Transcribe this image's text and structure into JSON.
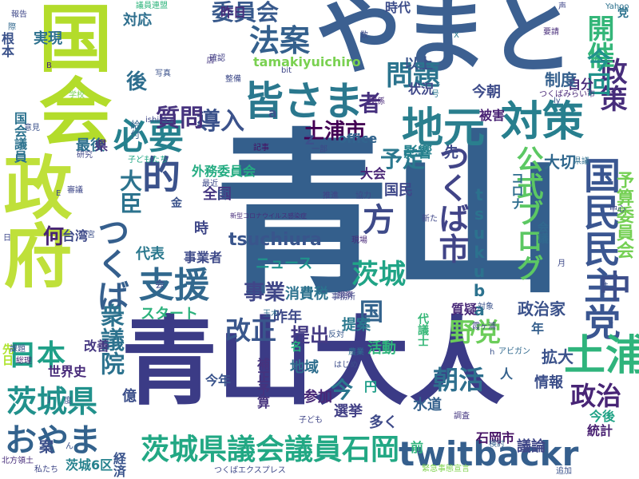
{
  "words": [
    {
      "text": "青山",
      "color": "#345f8c"
    },
    {
      "text": "青山大人",
      "color": "#3b3b86"
    },
    {
      "text": "やまと",
      "color": "#3c6091"
    },
    {
      "text": "国会",
      "color": "#b3dc2b"
    },
    {
      "text": "政府",
      "color": "#bfe03a"
    },
    {
      "text": "国民民主党",
      "color": "#3a5691"
    },
    {
      "text": "土浦",
      "color": "#2fb47c"
    },
    {
      "text": "地元",
      "color": "#2a7f8e"
    },
    {
      "text": "対策",
      "color": "#277f8e"
    },
    {
      "text": "政策",
      "color": "#472d7b"
    },
    {
      "text": "皆さま",
      "color": "#2a788e"
    },
    {
      "text": "法案",
      "color": "#34608d"
    },
    {
      "text": "問題",
      "color": "#2b748e"
    },
    {
      "text": "開催",
      "color": "#34b679"
    },
    {
      "text": "今回",
      "color": "#20928c"
    },
    {
      "text": "必要",
      "color": "#26818e"
    },
    {
      "text": "的",
      "color": "#3b528b"
    },
    {
      "text": "つくば",
      "color": "#355f8d"
    },
    {
      "text": "つくば市",
      "color": "#414487"
    },
    {
      "text": "支援",
      "color": "#31688e"
    },
    {
      "text": "方",
      "color": "#3e4a89"
    },
    {
      "text": "公式ブログ",
      "color": "#5cc863"
    },
    {
      "text": "茨城県議会議員石岡",
      "color": "#22a884"
    },
    {
      "text": "twitbackr",
      "color": "#355f8d"
    },
    {
      "text": "茨城県",
      "color": "#21918c"
    },
    {
      "text": "おやま",
      "color": "#33628d"
    },
    {
      "text": "日本",
      "color": "#1fa088"
    },
    {
      "text": "衆議院",
      "color": "#2c728e"
    },
    {
      "text": "改正",
      "color": "#39568c"
    },
    {
      "text": "茨城",
      "color": "#20a486"
    },
    {
      "text": "野党",
      "color": "#6ccd5a"
    },
    {
      "text": "朝活",
      "color": "#2e6f8e"
    },
    {
      "text": "政治",
      "color": "#482576"
    },
    {
      "text": "中",
      "color": "#3d4e8a"
    },
    {
      "text": "tsuchiura",
      "color": "#39558c"
    },
    {
      "text": "tsukuba",
      "color": "#2c728e"
    },
    {
      "text": "導入",
      "color": "#3b528b"
    },
    {
      "text": "質問",
      "color": "#46327e"
    },
    {
      "text": "委員会",
      "color": "#38598c"
    },
    {
      "text": "tamakiyuichiro",
      "color": "#7ad151"
    },
    {
      "text": "土浦市",
      "color": "#440154"
    },
    {
      "text": "予定",
      "color": "#2a788e"
    },
    {
      "text": "国",
      "color": "#33638d"
    },
    {
      "text": "事業",
      "color": "#404688"
    },
    {
      "text": "提出",
      "color": "#443a83"
    },
    {
      "text": "今",
      "color": "#2a778e"
    },
    {
      "text": "大臣",
      "color": "#2c738e"
    },
    {
      "text": "者",
      "color": "#46307e"
    },
    {
      "text": "後",
      "color": "#2e6e8e"
    },
    {
      "text": "昨日",
      "color": "#472c7a"
    },
    {
      "text": "時代",
      "color": "#3d4d8a"
    },
    {
      "text": "党",
      "color": "#2c728e"
    },
    {
      "text": "自分",
      "color": "#472c7a"
    },
    {
      "text": "国民",
      "color": "#3f4889"
    },
    {
      "text": "大会",
      "color": "#482475"
    },
    {
      "text": "大切",
      "color": "#31688e"
    },
    {
      "text": "影響",
      "color": "#26828e"
    },
    {
      "text": "被害",
      "color": "#482173"
    },
    {
      "text": "今朝",
      "color": "#3e4c8a"
    },
    {
      "text": "状況",
      "color": "#3f4889"
    },
    {
      "text": "制度",
      "color": "#35608d"
    },
    {
      "text": "以上",
      "color": "#3a548c"
    },
    {
      "text": "コロナ",
      "color": "#2e6e8e"
    },
    {
      "text": "予算委員会",
      "color": "#75d054"
    },
    {
      "text": "外務委員会",
      "color": "#25ac82"
    },
    {
      "text": "全国",
      "color": "#453781"
    },
    {
      "text": "実現",
      "color": "#2d718e"
    },
    {
      "text": "対応",
      "color": "#2e6f8e"
    },
    {
      "text": "先",
      "color": "#3e4989"
    },
    {
      "text": "office",
      "color": "#32658e"
    },
    {
      "text": "Z",
      "color": "#3c508b"
    },
    {
      "text": "a",
      "color": "#3b528b"
    },
    {
      "text": "最後",
      "color": "#2d708e"
    },
    {
      "text": "県",
      "color": "#46327e"
    },
    {
      "text": "何",
      "color": "#482475"
    },
    {
      "text": "代表",
      "color": "#2a788e"
    },
    {
      "text": "時",
      "color": "#3f4788"
    },
    {
      "text": "事業者",
      "color": "#3e4a89"
    },
    {
      "text": "消費税",
      "color": "#2c728e"
    },
    {
      "text": "ニュース",
      "color": "#20938c"
    },
    {
      "text": "スタート",
      "color": "#2db27d"
    },
    {
      "text": "昨年",
      "color": "#3e4a89"
    },
    {
      "text": "提案",
      "color": "#2a788e"
    },
    {
      "text": "政治家",
      "color": "#3b528b"
    },
    {
      "text": "質疑",
      "color": "#482878"
    },
    {
      "text": "活動",
      "color": "#2fb47c"
    },
    {
      "text": "拡大",
      "color": "#3b528b"
    },
    {
      "text": "年",
      "color": "#355f8d"
    },
    {
      "text": "改善",
      "color": "#453781"
    },
    {
      "text": "世界史",
      "color": "#472a7a"
    },
    {
      "text": "今年",
      "color": "#3a548c"
    },
    {
      "text": "補正予算",
      "color": "#46337e"
    },
    {
      "text": "地域",
      "color": "#2e6e8e"
    },
    {
      "text": "円",
      "color": "#1f9e89"
    },
    {
      "text": "参加",
      "color": "#482878"
    },
    {
      "text": "情報",
      "color": "#3c4f8a"
    },
    {
      "text": "水道",
      "color": "#34618d"
    },
    {
      "text": "選挙",
      "color": "#424086"
    },
    {
      "text": "多く",
      "color": "#3e4a89"
    },
    {
      "text": "今後",
      "color": "#20a386"
    },
    {
      "text": "統計",
      "color": "#482071"
    },
    {
      "text": "議論",
      "color": "#3f4788"
    },
    {
      "text": "石岡市",
      "color": "#471365"
    },
    {
      "text": "茨城6区",
      "color": "#26828e"
    },
    {
      "text": "経済",
      "color": "#3a548c"
    },
    {
      "text": "億",
      "color": "#3c4f8a"
    },
    {
      "text": "つくばエクスプレス",
      "color": "#3e4989"
    },
    {
      "text": "緊急事態宣言",
      "color": "#7fd34e"
    },
    {
      "text": "新型コロナウイルス感染症",
      "color": "#472d7b"
    },
    {
      "text": "会議",
      "color": "#31688e"
    },
    {
      "text": "代議士",
      "color": "#37b878"
    },
    {
      "text": "案",
      "color": "#3c4f8a"
    },
    {
      "text": "名",
      "color": "#29af7f"
    },
    {
      "text": "会",
      "color": "#3f4788"
    },
    {
      "text": "根本",
      "color": "#3b528b"
    },
    {
      "text": "国会議員",
      "color": "#2c728e"
    },
    {
      "text": "先日",
      "color": "#ade32a"
    },
    {
      "text": "報告",
      "color": "#3f4889"
    },
    {
      "text": "つくばみらい市",
      "color": "#482677"
    },
    {
      "text": "Yahoo",
      "color": "#2c718e"
    },
    {
      "text": "要請",
      "color": "#472c7a"
    },
    {
      "text": "推進",
      "color": "#424086"
    },
    {
      "text": "協力",
      "color": "#3e4a89"
    },
    {
      "text": "対象",
      "color": "#3b528b"
    },
    {
      "text": "霞ヶ浦",
      "color": "#414487"
    },
    {
      "text": "新た",
      "color": "#3f4788"
    },
    {
      "text": "現場",
      "color": "#482878"
    },
    {
      "text": "視察",
      "color": "#453882"
    },
    {
      "text": "調査",
      "color": "#453781"
    },
    {
      "text": "はじめ",
      "color": "#3d4d8a"
    },
    {
      "text": "検討",
      "color": "#34618d"
    },
    {
      "text": "子ども",
      "color": "#404688"
    },
    {
      "text": "農業",
      "color": "#2c728e"
    },
    {
      "text": "反対",
      "color": "#38588c"
    },
    {
      "text": "アビガン",
      "color": "#30698e"
    },
    {
      "text": "玉木",
      "color": "#2f6c8e"
    },
    {
      "text": "ishioka",
      "color": "#3f4788"
    },
    {
      "text": "給付",
      "color": "#33638d"
    },
    {
      "text": "審議",
      "color": "#3f4889"
    },
    {
      "text": "私たち",
      "color": "#3f4788"
    },
    {
      "text": "北方領土",
      "color": "#472d7b"
    },
    {
      "text": "課題",
      "color": "#3b528b"
    },
    {
      "text": "総理",
      "color": "#482475"
    },
    {
      "text": "意見",
      "color": "#3b528b"
    },
    {
      "text": "記事",
      "color": "#471063"
    },
    {
      "text": "関係",
      "color": "#482878"
    },
    {
      "text": "整備",
      "color": "#3e4a89"
    },
    {
      "text": "研究",
      "color": "#3f4788"
    },
    {
      "text": "中心",
      "color": "#404688"
    },
    {
      "text": "県議",
      "color": "#2e6e8e"
    },
    {
      "text": "最近",
      "color": "#3e4a89"
    },
    {
      "text": "子どもたち",
      "color": "#22a785"
    },
    {
      "text": "宮",
      "color": "#3c4f8a"
    },
    {
      "text": "一部",
      "color": "#3f4788"
    },
    {
      "text": "確認",
      "color": "#424086"
    },
    {
      "text": "写真",
      "color": "#3b528b"
    },
    {
      "text": "議員連盟",
      "color": "#2fb47c"
    },
    {
      "text": "店",
      "color": "#453781"
    },
    {
      "text": "数",
      "color": "#3d4d8a"
    },
    {
      "text": "学校",
      "color": "#7ad151"
    },
    {
      "text": "追加",
      "color": "#3b528b"
    },
    {
      "text": "事務所",
      "color": "#3f4788"
    },
    {
      "text": "台湾",
      "color": "#3e4a89"
    },
    {
      "text": "金",
      "color": "#3b528b"
    },
    {
      "text": "際",
      "color": "#31688e"
    },
    {
      "text": "日",
      "color": "#3e4989"
    },
    {
      "text": "目",
      "color": "#3b528b"
    },
    {
      "text": "人",
      "color": "#34618d"
    },
    {
      "text": "前",
      "color": "#2fb47c"
    },
    {
      "text": "ん",
      "color": "#3b528b"
    },
    {
      "text": "号",
      "color": "#2a788e"
    },
    {
      "text": "月",
      "color": "#3e4a89"
    },
    {
      "text": "法",
      "color": "#3b528b"
    },
    {
      "text": "声",
      "color": "#3f4788"
    },
    {
      "text": "度",
      "color": "#3b528b"
    },
    {
      "text": "E",
      "color": "#3e4a89"
    },
    {
      "text": "B",
      "color": "#482475"
    },
    {
      "text": "X",
      "color": "#2a788e"
    },
    {
      "text": "C",
      "color": "#3b528b"
    },
    {
      "text": "J",
      "color": "#3b528b"
    },
    {
      "text": "bit",
      "color": "#3f4788"
    },
    {
      "text": "h",
      "color": "#3b528b"
    },
    {
      "text": "ly",
      "color": "#3b528b"
    },
    {
      "text": "PL",
      "color": "#3b528b"
    }
  ]
}
